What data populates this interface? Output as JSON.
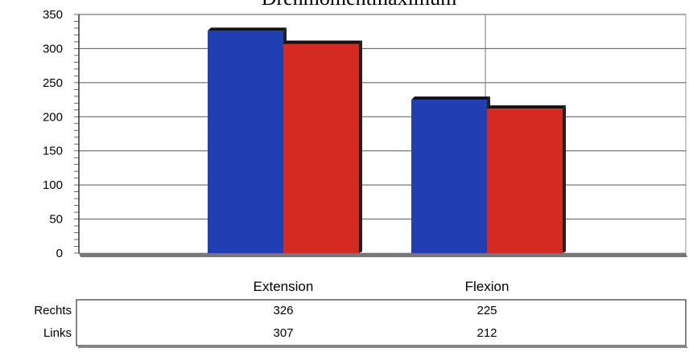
{
  "chart_data": {
    "type": "bar",
    "title": "Drehmomentmaximum",
    "categories": [
      "Extension",
      "Flexion"
    ],
    "series": [
      {
        "name": "Rechts",
        "values": [
          326,
          225
        ],
        "color": "#1f3fb3"
      },
      {
        "name": "Links",
        "values": [
          307,
          212
        ],
        "color": "#d42a22"
      }
    ],
    "ylim": [
      0,
      350
    ],
    "yticks": [
      0,
      50,
      100,
      150,
      200,
      250,
      300,
      350
    ],
    "grid": true,
    "legend": "data-table-below"
  },
  "table": {
    "rows": [
      {
        "label": "Rechts",
        "values": [
          "326",
          "225"
        ]
      },
      {
        "label": "Links",
        "values": [
          "307",
          "212"
        ]
      }
    ]
  }
}
